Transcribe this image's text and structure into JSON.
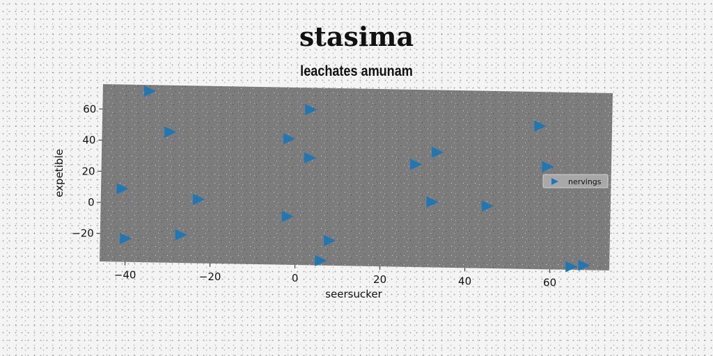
{
  "title": "stasima",
  "chart_data": {
    "type": "scatter",
    "title": "leachates amunam",
    "xlabel": "seersucker",
    "ylabel": "expetible",
    "xlim": [
      -46,
      74
    ],
    "ylim": [
      -38,
      76
    ],
    "xticks": [
      -40,
      -20,
      0,
      20,
      40,
      60
    ],
    "yticks": [
      -20,
      0,
      20,
      40,
      60
    ],
    "legend_position": "center-right",
    "grid": false,
    "series": [
      {
        "name": "nervings",
        "marker": "triangle-right",
        "color": "#1f77b4",
        "points": [
          [
            -35,
            72
          ],
          [
            3,
            62
          ],
          [
            -30,
            46
          ],
          [
            -2,
            43
          ],
          [
            3,
            31
          ],
          [
            28,
            28
          ],
          [
            33,
            36
          ],
          [
            57,
            54
          ],
          [
            59,
            28
          ],
          [
            -41,
            9
          ],
          [
            -23,
            3
          ],
          [
            32,
            4
          ],
          [
            45,
            2
          ],
          [
            -2,
            -7
          ],
          [
            -27,
            -20
          ],
          [
            -40,
            -23
          ],
          [
            8,
            -22
          ],
          [
            6,
            -35
          ],
          [
            65,
            -36
          ],
          [
            68,
            -35
          ]
        ]
      }
    ]
  }
}
